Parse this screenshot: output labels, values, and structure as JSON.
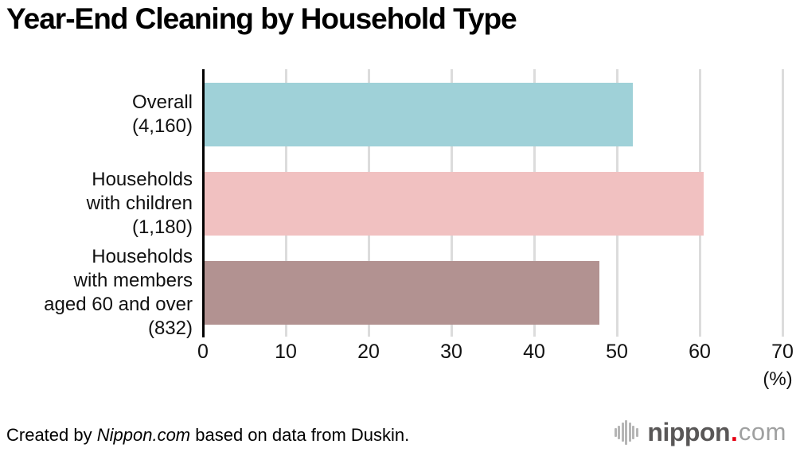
{
  "title": "Year-End Cleaning by Household Type",
  "chart_data": {
    "type": "bar",
    "orientation": "horizontal",
    "title": "Year-End Cleaning by Household Type",
    "categories": [
      "Overall (4,160)",
      "Households with children (1,180)",
      "Households with members aged 60 and over (832)"
    ],
    "category_lines": [
      [
        "Overall",
        "(4,160)"
      ],
      [
        "Households",
        "with children",
        "(1,180)"
      ],
      [
        "Households",
        "with members",
        "aged 60 and over",
        "(832)"
      ]
    ],
    "values": [
      51.9,
      60.5,
      47.9
    ],
    "bar_colors": [
      "#9fd1d8",
      "#f1c1c1",
      "#b29291"
    ],
    "xlabel": "(%)",
    "xlim": [
      0,
      70
    ],
    "xticks": [
      0,
      10,
      20,
      30,
      40,
      50,
      60,
      70
    ],
    "grid": true,
    "gridline_color": "#dcdcdc",
    "axis_color": "#000000",
    "legend": "none"
  },
  "footer": {
    "credit_prefix": "Created by ",
    "credit_source": "Nippon.com",
    "credit_suffix": " based on data from Duskin.",
    "logo": {
      "icon": "waveform-icon",
      "icon_bar_heights": [
        11,
        17,
        24,
        31,
        24,
        17,
        11
      ],
      "icon_color": "#b5b5b5",
      "name": "nippon",
      "dot": ".",
      "tld": "com",
      "name_color": "#595757",
      "dot_color": "#e60012",
      "tld_color": "#9fa0a0"
    }
  }
}
